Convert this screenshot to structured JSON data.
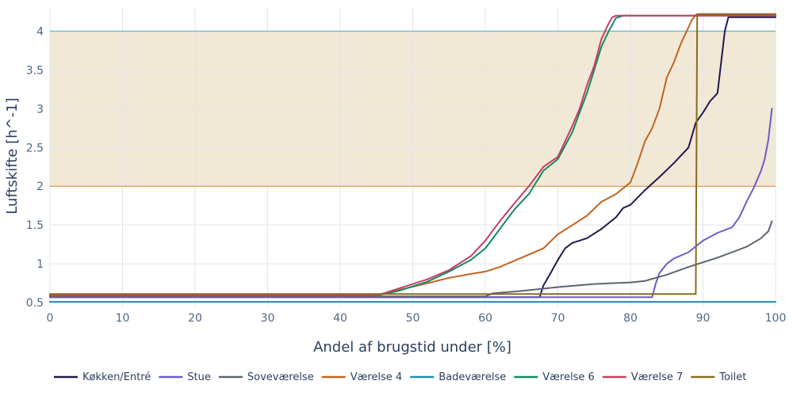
{
  "chart_data": {
    "type": "line",
    "xlabel": "Andel af brugstid under [%]",
    "ylabel": "Luftskifte [h^-1]",
    "xlim": [
      0,
      100
    ],
    "ylim": [
      0.45,
      4.3
    ],
    "x_ticks": [
      0,
      10,
      20,
      30,
      40,
      50,
      60,
      70,
      80,
      90,
      100
    ],
    "x_tick_labels": [
      "0",
      "10",
      "20",
      "30",
      "40",
      "50",
      "60",
      "70",
      "80",
      "90",
      "100"
    ],
    "y_ticks": [
      0.5,
      1,
      1.5,
      2,
      2.5,
      3,
      3.5,
      4
    ],
    "y_tick_labels": [
      "0.5",
      "1",
      "1.5",
      "2",
      "2.5",
      "3",
      "3.5",
      "4"
    ],
    "grid": true,
    "legend_position": "bottom",
    "band": {
      "y_from": 2,
      "y_to": 4,
      "fill": "#f1e8d6"
    },
    "reference_lines": [
      {
        "y": 4,
        "color": "#7fbcbf"
      },
      {
        "y": 2,
        "color": "#e6a86b"
      }
    ],
    "series": [
      {
        "name": "Køkken/Entré",
        "color": "#1f1a4e",
        "x": [
          0,
          67.5,
          68,
          69,
          70,
          71,
          72,
          74,
          76,
          78,
          79,
          80,
          82,
          84,
          86,
          88,
          89,
          90,
          91,
          92,
          92.5,
          93,
          93.5,
          100
        ],
        "y": [
          0.57,
          0.57,
          0.72,
          0.88,
          1.05,
          1.2,
          1.27,
          1.33,
          1.45,
          1.6,
          1.72,
          1.76,
          1.95,
          2.12,
          2.3,
          2.5,
          2.82,
          2.95,
          3.1,
          3.2,
          3.6,
          4.0,
          4.18,
          4.18
        ]
      },
      {
        "name": "Stue",
        "color": "#6a5cc6",
        "x": [
          0,
          83,
          83.5,
          84,
          85,
          86,
          88,
          90,
          92,
          94,
          95,
          96,
          97,
          98,
          98.5,
          99,
          99.5
        ],
        "y": [
          0.57,
          0.57,
          0.75,
          0.88,
          1.0,
          1.07,
          1.15,
          1.3,
          1.4,
          1.47,
          1.6,
          1.8,
          1.98,
          2.2,
          2.35,
          2.6,
          3.0
        ]
      },
      {
        "name": "Soveværelse",
        "color": "#5b6470",
        "x": [
          0,
          60,
          61,
          65,
          70,
          75,
          80,
          82,
          85,
          88,
          90,
          92,
          94,
          96,
          98,
          99,
          99.5
        ],
        "y": [
          0.58,
          0.58,
          0.62,
          0.65,
          0.7,
          0.74,
          0.76,
          0.78,
          0.86,
          0.96,
          1.02,
          1.08,
          1.15,
          1.22,
          1.33,
          1.42,
          1.55
        ]
      },
      {
        "name": "Værelse 4",
        "color": "#c1651f",
        "x": [
          0,
          45,
          48,
          52,
          55,
          58,
          60,
          62,
          65,
          68,
          70,
          72,
          74,
          76,
          78,
          80,
          81,
          82,
          83,
          84,
          85,
          86,
          87,
          88,
          88.5,
          89,
          100
        ],
        "y": [
          0.6,
          0.6,
          0.66,
          0.75,
          0.82,
          0.87,
          0.9,
          0.96,
          1.08,
          1.2,
          1.38,
          1.5,
          1.62,
          1.8,
          1.9,
          2.05,
          2.3,
          2.58,
          2.75,
          3.0,
          3.4,
          3.6,
          3.85,
          4.05,
          4.15,
          4.21,
          4.21
        ]
      },
      {
        "name": "Badeværelse",
        "color": "#1f8fb3",
        "x": [
          0,
          100
        ],
        "y": [
          0.51,
          0.51
        ]
      },
      {
        "name": "Værelse 6",
        "color": "#128a62",
        "x": [
          0,
          45,
          48,
          52,
          55,
          58,
          60,
          62,
          64,
          66,
          68,
          70,
          72,
          73,
          74,
          75,
          76,
          77,
          78,
          79,
          100
        ],
        "y": [
          0.59,
          0.59,
          0.65,
          0.77,
          0.9,
          1.05,
          1.2,
          1.45,
          1.7,
          1.9,
          2.2,
          2.35,
          2.7,
          2.95,
          3.2,
          3.5,
          3.8,
          4.0,
          4.17,
          4.2,
          4.2
        ]
      },
      {
        "name": "Værelse 7",
        "color": "#c93d62",
        "x": [
          0,
          45,
          48,
          52,
          55,
          58,
          60,
          62,
          64,
          66,
          68,
          70,
          72,
          73,
          74,
          75,
          76,
          77,
          77.5,
          78,
          100
        ],
        "y": [
          0.59,
          0.59,
          0.68,
          0.8,
          0.92,
          1.1,
          1.3,
          1.55,
          1.78,
          2.0,
          2.25,
          2.38,
          2.78,
          3.0,
          3.3,
          3.55,
          3.9,
          4.1,
          4.18,
          4.2,
          4.2
        ]
      },
      {
        "name": "Toilet",
        "color": "#8a6a1c",
        "x": [
          0,
          89,
          89.2,
          100
        ],
        "y": [
          0.61,
          0.61,
          4.22,
          4.22
        ]
      }
    ]
  }
}
